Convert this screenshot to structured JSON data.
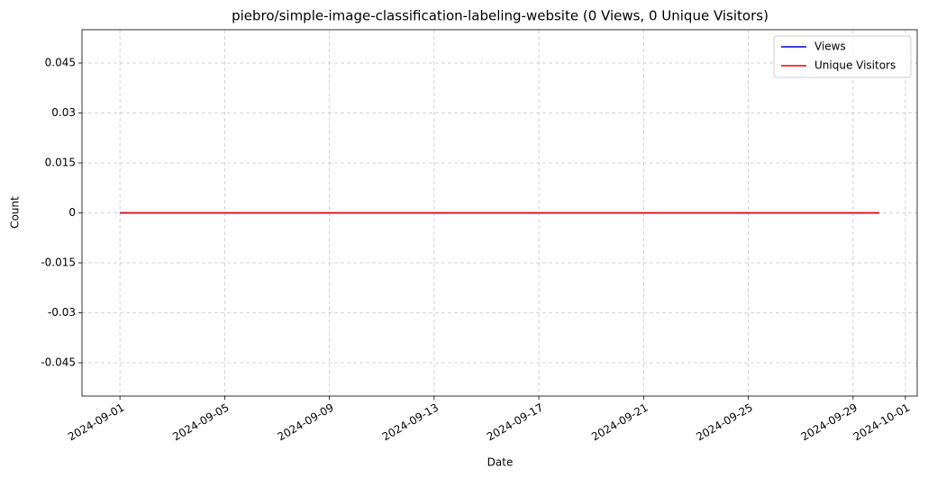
{
  "chart_data": {
    "type": "line",
    "title": "piebro/simple-image-classification-labeling-website (0 Views, 0 Unique Visitors)",
    "xlabel": "Date",
    "ylabel": "Count",
    "x": [
      "2024-09-01",
      "2024-09-02",
      "2024-09-03",
      "2024-09-04",
      "2024-09-05",
      "2024-09-06",
      "2024-09-07",
      "2024-09-08",
      "2024-09-09",
      "2024-09-10",
      "2024-09-11",
      "2024-09-12",
      "2024-09-13",
      "2024-09-14",
      "2024-09-15",
      "2024-09-16",
      "2024-09-17",
      "2024-09-18",
      "2024-09-19",
      "2024-09-20",
      "2024-09-21",
      "2024-09-22",
      "2024-09-23",
      "2024-09-24",
      "2024-09-25",
      "2024-09-26",
      "2024-09-27",
      "2024-09-28",
      "2024-09-29",
      "2024-09-30"
    ],
    "series": [
      {
        "name": "Views",
        "color": "#0000cc",
        "values": [
          0,
          0,
          0,
          0,
          0,
          0,
          0,
          0,
          0,
          0,
          0,
          0,
          0,
          0,
          0,
          0,
          0,
          0,
          0,
          0,
          0,
          0,
          0,
          0,
          0,
          0,
          0,
          0,
          0,
          0
        ]
      },
      {
        "name": "Unique Visitors",
        "color": "#ee0000",
        "values": [
          0,
          0,
          0,
          0,
          0,
          0,
          0,
          0,
          0,
          0,
          0,
          0,
          0,
          0,
          0,
          0,
          0,
          0,
          0,
          0,
          0,
          0,
          0,
          0,
          0,
          0,
          0,
          0,
          0,
          0
        ]
      }
    ],
    "xlim": [
      "2024-08-30T13:12:00Z",
      "2024-10-01T10:48:00Z"
    ],
    "xticks": [
      "2024-09-01",
      "2024-09-05",
      "2024-09-09",
      "2024-09-13",
      "2024-09-17",
      "2024-09-21",
      "2024-09-25",
      "2024-09-29",
      "2024-10-01"
    ],
    "ylim": [
      -0.055,
      0.055
    ],
    "yticks": [
      -0.045,
      -0.03,
      -0.015,
      0,
      0.015,
      0.03,
      0.045
    ],
    "grid": true,
    "legend": "upper right"
  }
}
